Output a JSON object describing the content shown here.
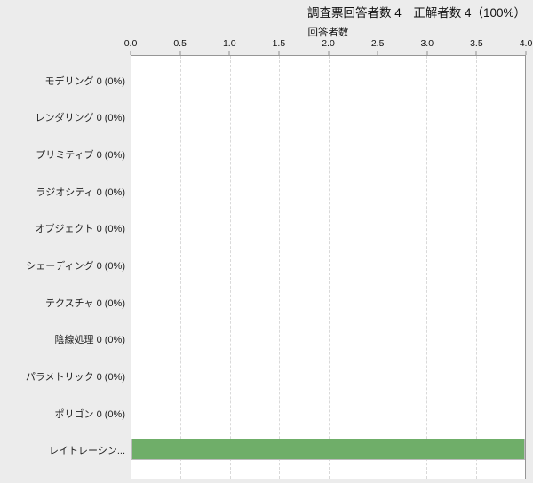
{
  "title": "調査票回答者数 4　正解者数 4（100%）",
  "axis": {
    "label": "回答者数",
    "ticks": [
      "0.0",
      "0.5",
      "1.0",
      "1.5",
      "2.0",
      "2.5",
      "3.0",
      "3.5",
      "4.0"
    ]
  },
  "rows": [
    {
      "label": "モデリング 0 (0%)"
    },
    {
      "label": "レンダリング 0 (0%)"
    },
    {
      "label": "プリミティブ 0 (0%)"
    },
    {
      "label": "ラジオシティ 0 (0%)"
    },
    {
      "label": "オブジェクト 0 (0%)"
    },
    {
      "label": "シェーディング 0 (0%)"
    },
    {
      "label": "テクスチャ 0 (0%)"
    },
    {
      "label": "陰線処理 0 (0%)"
    },
    {
      "label": "パラメトリック 0 (0%)"
    },
    {
      "label": "ポリゴン 0 (0%)"
    },
    {
      "label": "レイトレーシン..."
    }
  ],
  "colors": {
    "background": "#ececec",
    "plot_background": "#ffffff",
    "plot_border": "#969696",
    "gridline": "#d9d9d9",
    "bar": "#6fae69",
    "bar_border": "#bcbcbc"
  },
  "chart_data": {
    "type": "bar",
    "orientation": "horizontal",
    "title": "調査票回答者数 4　正解者数 4（100%）",
    "xlabel": "回答者数",
    "ylabel": "",
    "categories": [
      "モデリング",
      "レンダリング",
      "プリミティブ",
      "ラジオシティ",
      "オブジェクト",
      "シェーディング",
      "テクスチャ",
      "陰線処理",
      "パラメトリック",
      "ポリゴン",
      "レイトレーシン..."
    ],
    "values": [
      0,
      0,
      0,
      0,
      0,
      0,
      0,
      0,
      0,
      0,
      4
    ],
    "value_labels": [
      "0 (0%)",
      "0 (0%)",
      "0 (0%)",
      "0 (0%)",
      "0 (0%)",
      "0 (0%)",
      "0 (0%)",
      "0 (0%)",
      "0 (0%)",
      "0 (0%)",
      ""
    ],
    "xlim": [
      0,
      4
    ],
    "xticks": [
      0.0,
      0.5,
      1.0,
      1.5,
      2.0,
      2.5,
      3.0,
      3.5,
      4.0
    ],
    "grid": "vertical-dashed",
    "legend": "none",
    "bar_color": "#6fae69"
  }
}
